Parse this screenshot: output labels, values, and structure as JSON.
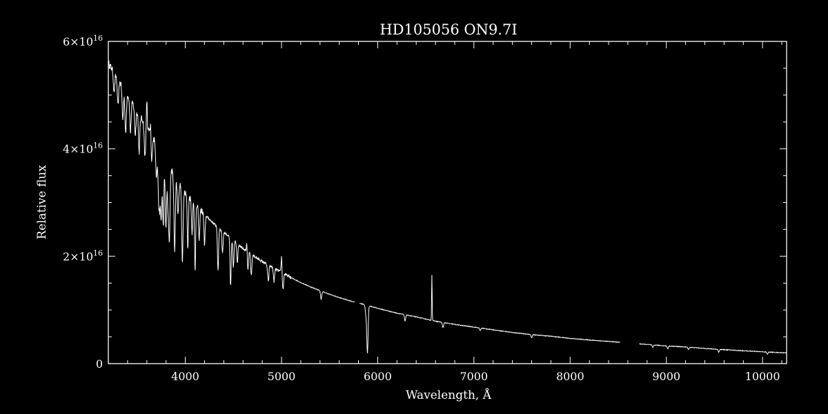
{
  "chart_data": {
    "type": "line",
    "title": "HD105056   ON9.7I",
    "xlabel": "Wavelength, Å",
    "ylabel": "Relative flux",
    "xlim": [
      3200,
      10250
    ],
    "ylim": [
      0,
      6e+16
    ],
    "x_ticks": [
      {
        "value": 4000,
        "label": "4000"
      },
      {
        "value": 5000,
        "label": "5000"
      },
      {
        "value": 6000,
        "label": "6000"
      },
      {
        "value": 7000,
        "label": "7000"
      },
      {
        "value": 8000,
        "label": "8000"
      },
      {
        "value": 9000,
        "label": "9000"
      },
      {
        "value": 10000,
        "label": "10000"
      }
    ],
    "y_ticks": [
      {
        "value": 0,
        "mantissa": "0",
        "exponent": ""
      },
      {
        "value": 2e+16,
        "mantissa": "2×10",
        "exponent": "16"
      },
      {
        "value": 4e+16,
        "mantissa": "4×10",
        "exponent": "16"
      },
      {
        "value": 6e+16,
        "mantissa": "6×10",
        "exponent": "16"
      }
    ],
    "grid": false,
    "legend": "none",
    "colors": {
      "background": "#000000",
      "foreground": "#ffffff"
    },
    "series": [
      {
        "continuum": [
          [
            3200,
            5.6e+16
          ],
          [
            3300,
            5.3e+16
          ],
          [
            3400,
            5e+16
          ],
          [
            3500,
            4.7e+16
          ],
          [
            3600,
            4.4e+16
          ],
          [
            3700,
            4.1e+16
          ],
          [
            3800,
            3.8e+16
          ],
          [
            3900,
            3.45e+16
          ],
          [
            4000,
            3.2e+16
          ],
          [
            4100,
            2.98e+16
          ],
          [
            4200,
            2.78e+16
          ],
          [
            4300,
            2.6e+16
          ],
          [
            4400,
            2.45e+16
          ],
          [
            4500,
            2.3e+16
          ],
          [
            4600,
            2.15e+16
          ],
          [
            4700,
            2.02e+16
          ],
          [
            4800,
            1.9e+16
          ],
          [
            4900,
            1.8e+16
          ],
          [
            5000,
            1.7e+16
          ],
          [
            5100,
            1.6e+16
          ],
          [
            5200,
            1.51e+16
          ],
          [
            5300,
            1.43e+16
          ],
          [
            5400,
            1.36e+16
          ],
          [
            5500,
            1.29e+16
          ],
          [
            5600,
            1.23e+16
          ],
          [
            5750,
            1.15e+16
          ],
          [
            5800,
            1.13e+16
          ],
          [
            5900,
            1.08e+16
          ],
          [
            6000,
            1.03e+16
          ],
          [
            6200,
            9400000000000000.0
          ],
          [
            6400,
            8700000000000000.0
          ],
          [
            6600,
            7900000000000000.0
          ],
          [
            6800,
            7300000000000000.0
          ],
          [
            7000,
            6800000000000000.0
          ],
          [
            7200,
            6300000000000000.0
          ],
          [
            7400,
            5800000000000000.0
          ],
          [
            7600,
            5400000000000000.0
          ],
          [
            7800,
            5100000000000000.0
          ],
          [
            8000,
            4700000000000000.0
          ],
          [
            8200,
            4400000000000000.0
          ],
          [
            8500,
            4000000000000000.0
          ],
          [
            8700,
            3700000000000000.0
          ],
          [
            9000,
            3300000000000000.0
          ],
          [
            9200,
            3100000000000000.0
          ],
          [
            9500,
            2700000000000000.0
          ],
          [
            9800,
            2400000000000000.0
          ],
          [
            10000,
            2200000000000000.0
          ],
          [
            10250,
            2000000000000000.0
          ]
        ],
        "gaps": [
          [
            5760,
            5810
          ],
          [
            8520,
            8720
          ]
        ],
        "absorption_lines": [
          [
            3260,
            3500000000000000.0
          ],
          [
            3300,
            5000000000000000.0
          ],
          [
            3350,
            6000000000000000.0
          ],
          [
            3380,
            8000000000000000.0
          ],
          [
            3430,
            6000000000000000.0
          ],
          [
            3480,
            5000000000000000.0
          ],
          [
            3520,
            7000000000000000.0
          ],
          [
            3580,
            6000000000000000.0
          ],
          [
            3650,
            5000000000000000.0
          ],
          [
            3700,
            6000000000000000.0
          ],
          [
            3722,
            8000000000000000.0
          ],
          [
            3734,
            9000000000000000.0
          ],
          [
            3750,
            1.2e+16
          ],
          [
            3771,
            1.3e+16
          ],
          [
            3798,
            1.3e+16
          ],
          [
            3820,
            8000000000000000.0
          ],
          [
            3835,
            1.3e+16
          ],
          [
            3889,
            1.4e+16
          ],
          [
            3924,
            6000000000000000.0
          ],
          [
            3970,
            1.4e+16
          ],
          [
            4026,
            1e+16
          ],
          [
            4070,
            6000000000000000.0
          ],
          [
            4102,
            1.2e+16
          ],
          [
            4144,
            6000000000000000.0
          ],
          [
            4200,
            6000000000000000.0
          ],
          [
            4340,
            8000000000000000.0
          ],
          [
            4387,
            4000000000000000.0
          ],
          [
            4471,
            9000000000000000.0
          ],
          [
            4500,
            5000000000000000.0
          ],
          [
            4541,
            3500000000000000.0
          ],
          [
            4650,
            3500000000000000.0
          ],
          [
            4686,
            4000000000000000.0
          ],
          [
            4861,
            5500000000000000.0
          ],
          [
            4922,
            2500000000000000.0
          ],
          [
            5016,
            3000000000000000.0
          ],
          [
            5412,
            1500000000000000.0
          ],
          [
            5876,
            1500000000000000.0
          ],
          [
            5890,
            6000000000000000.0
          ],
          [
            5896,
            5000000000000000.0
          ],
          [
            6284,
            1200000000000000.0
          ],
          [
            6678,
            1000000000000000.0
          ],
          [
            7065,
            500000000000000.0
          ],
          [
            7600,
            600000000000000.0
          ],
          [
            8600,
            400000000000000.0
          ],
          [
            8860,
            500000000000000.0
          ],
          [
            9015,
            500000000000000.0
          ],
          [
            9230,
            400000000000000.0
          ],
          [
            9545,
            500000000000000.0
          ],
          [
            10050,
            400000000000000.0
          ]
        ],
        "emission_lines": [
          [
            3600,
            5000000000000000.0
          ],
          [
            3640,
            3000000000000000.0
          ],
          [
            4640,
            2000000000000000.0
          ],
          [
            4860,
            3000000000000000.0
          ],
          [
            5000,
            3000000000000000.0
          ],
          [
            5890,
            1000000000000000.0
          ],
          [
            6563,
            8500000000000000.0
          ]
        ]
      }
    ]
  }
}
